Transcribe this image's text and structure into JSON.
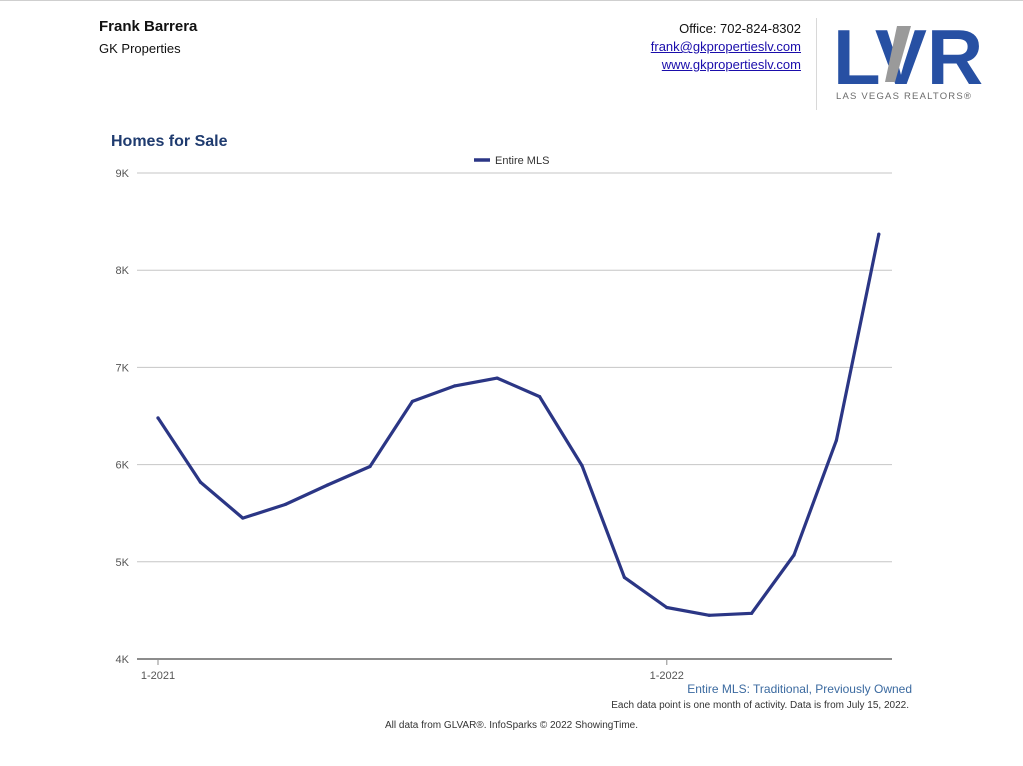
{
  "header": {
    "agent_name": "Frank Barrera",
    "company": "GK Properties",
    "office": "Office: 702-824-8302",
    "email": "frank@gkpropertieslv.com",
    "website": "www.gkpropertieslv.com",
    "logo_text": "LVR",
    "logo_subtext": "LAS VEGAS REALTORS®"
  },
  "colors": {
    "line": "#2b3685",
    "title": "#1f3b6f",
    "logo_blue": "#2750a3",
    "logo_gray": "#8a8a8a"
  },
  "chart_data": {
    "type": "line",
    "title": "Homes for Sale",
    "legend_position": "top-center",
    "grid": true,
    "ylim": [
      4000,
      9000
    ],
    "yticks": [
      "4K",
      "5K",
      "6K",
      "7K",
      "8K",
      "9K"
    ],
    "ytick_values": [
      4000,
      5000,
      6000,
      7000,
      8000,
      9000
    ],
    "x": [
      "1-2021",
      "2-2021",
      "3-2021",
      "4-2021",
      "5-2021",
      "6-2021",
      "7-2021",
      "8-2021",
      "9-2021",
      "10-2021",
      "11-2021",
      "12-2021",
      "1-2022",
      "2-2022",
      "3-2022",
      "4-2022",
      "5-2022",
      "6-2022"
    ],
    "xtick_labels": [
      "1-2021",
      "1-2022"
    ],
    "series": [
      {
        "name": "Entire MLS",
        "values": [
          6480,
          5820,
          5450,
          5590,
          5790,
          5980,
          6650,
          6810,
          6890,
          6700,
          5990,
          4840,
          4530,
          4450,
          4470,
          5070,
          6250,
          8370
        ]
      }
    ]
  },
  "footer": {
    "subtitle": "Entire MLS: Traditional, Previously Owned",
    "note": "Each data point is one month of activity. Data is from July 15, 2022.",
    "credit": "All data from GLVAR®. InfoSparks © 2022 ShowingTime."
  }
}
